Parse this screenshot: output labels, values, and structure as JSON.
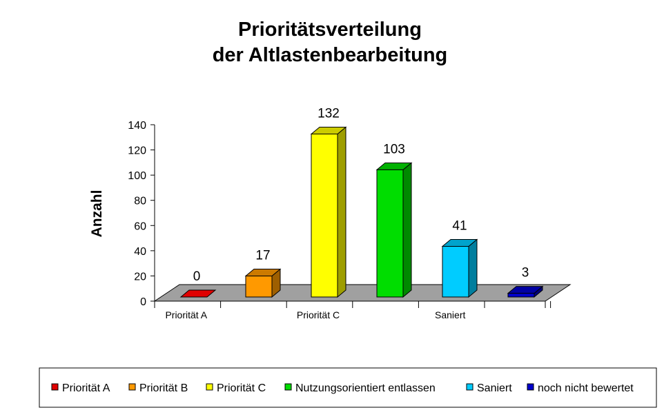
{
  "chart_data": {
    "type": "bar",
    "title": [
      "Prioritätsverteilung",
      "der Altlastenbearbeitung"
    ],
    "ylabel": "Anzahl",
    "ylim": [
      0,
      140
    ],
    "yticks": [
      0,
      20,
      40,
      60,
      80,
      100,
      120,
      140
    ],
    "categories": [
      "Priorität A",
      "",
      "Priorität C",
      "",
      "Saniert",
      ""
    ],
    "series": [
      {
        "name": "Priorität A",
        "value": 0,
        "color": "#E00000"
      },
      {
        "name": "Priorität B",
        "value": 17,
        "color": "#FF9900"
      },
      {
        "name": "Priorität C",
        "value": 132,
        "color": "#FFFF00"
      },
      {
        "name": "Nutzungsorientiert entlassen",
        "value": 103,
        "color": "#00DD00"
      },
      {
        "name": "Saniert",
        "value": 41,
        "color": "#00CCFF"
      },
      {
        "name": "noch nicht bewertet",
        "value": 3,
        "color": "#0000CC"
      }
    ],
    "floor_color": "#A0A0A0",
    "legend_position": "bottom",
    "grid": false
  }
}
